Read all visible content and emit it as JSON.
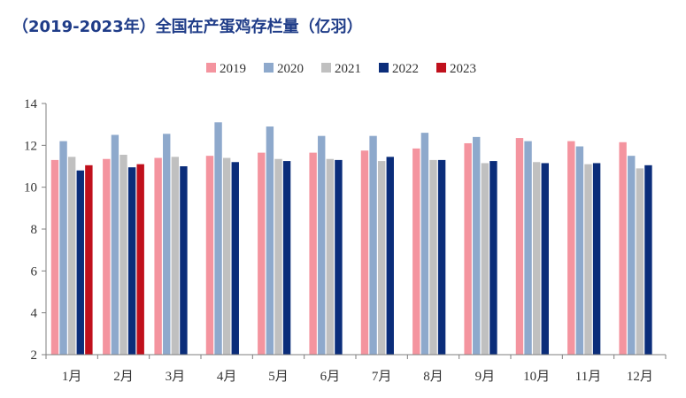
{
  "title": "（2019-2023年）全国在产蛋鸡存栏量（亿羽）",
  "chart_data": {
    "type": "bar",
    "title": "（2019-2023年）全国在产蛋鸡存栏量（亿羽）",
    "xlabel": "",
    "ylabel": "",
    "ylim": [
      2,
      14
    ],
    "yticks": [
      2,
      4,
      6,
      8,
      10,
      12,
      14
    ],
    "grid": false,
    "legend_position": "top-center",
    "categories": [
      "1月",
      "2月",
      "3月",
      "4月",
      "5月",
      "6月",
      "7月",
      "8月",
      "9月",
      "10月",
      "11月",
      "12月"
    ],
    "series": [
      {
        "name": "2019",
        "color": "#f4949f",
        "values": [
          11.3,
          11.35,
          11.4,
          11.5,
          11.65,
          11.65,
          11.75,
          11.85,
          12.1,
          12.35,
          12.2,
          12.15
        ]
      },
      {
        "name": "2020",
        "color": "#8ea9cc",
        "values": [
          12.2,
          12.5,
          12.55,
          13.1,
          12.9,
          12.45,
          12.45,
          12.6,
          12.4,
          12.2,
          11.95,
          11.5
        ]
      },
      {
        "name": "2021",
        "color": "#c0c0c0",
        "values": [
          11.45,
          11.55,
          11.45,
          11.4,
          11.35,
          11.35,
          11.25,
          11.3,
          11.15,
          11.2,
          11.1,
          10.9
        ]
      },
      {
        "name": "2022",
        "color": "#0b2d7a",
        "values": [
          10.8,
          10.95,
          11.0,
          11.2,
          11.25,
          11.3,
          11.45,
          11.3,
          11.25,
          11.15,
          11.15,
          11.05
        ]
      },
      {
        "name": "2023",
        "color": "#c0101c",
        "values": [
          11.05,
          11.1,
          null,
          null,
          null,
          null,
          null,
          null,
          null,
          null,
          null,
          null
        ]
      }
    ]
  }
}
